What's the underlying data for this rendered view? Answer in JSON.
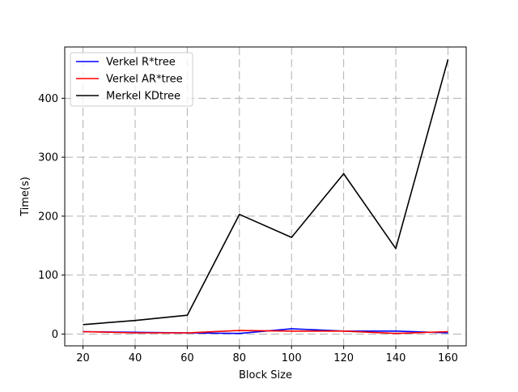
{
  "chart_data": {
    "type": "line",
    "title": "",
    "xlabel": "Block Size",
    "ylabel": "Time(s)",
    "x": [
      20,
      40,
      60,
      80,
      100,
      120,
      140,
      160
    ],
    "x_ticks": [
      20,
      40,
      60,
      80,
      100,
      120,
      140,
      160
    ],
    "y_ticks": [
      0,
      100,
      200,
      300,
      400
    ],
    "xlim": [
      13,
      167
    ],
    "ylim": [
      -20,
      487
    ],
    "grid": true,
    "legend_position": "top-left",
    "series": [
      {
        "name": "Verkel R*tree",
        "color": "#0000ff",
        "values": [
          4,
          3,
          2,
          1,
          9,
          5,
          5,
          2
        ]
      },
      {
        "name": "Verkel AR*tree",
        "color": "#ff0000",
        "values": [
          4,
          2,
          2,
          6,
          5,
          5,
          1,
          4
        ]
      },
      {
        "name": "Merkel KDtree",
        "color": "#000000",
        "values": [
          16,
          23,
          32,
          203,
          164,
          272,
          145,
          466
        ]
      }
    ]
  }
}
